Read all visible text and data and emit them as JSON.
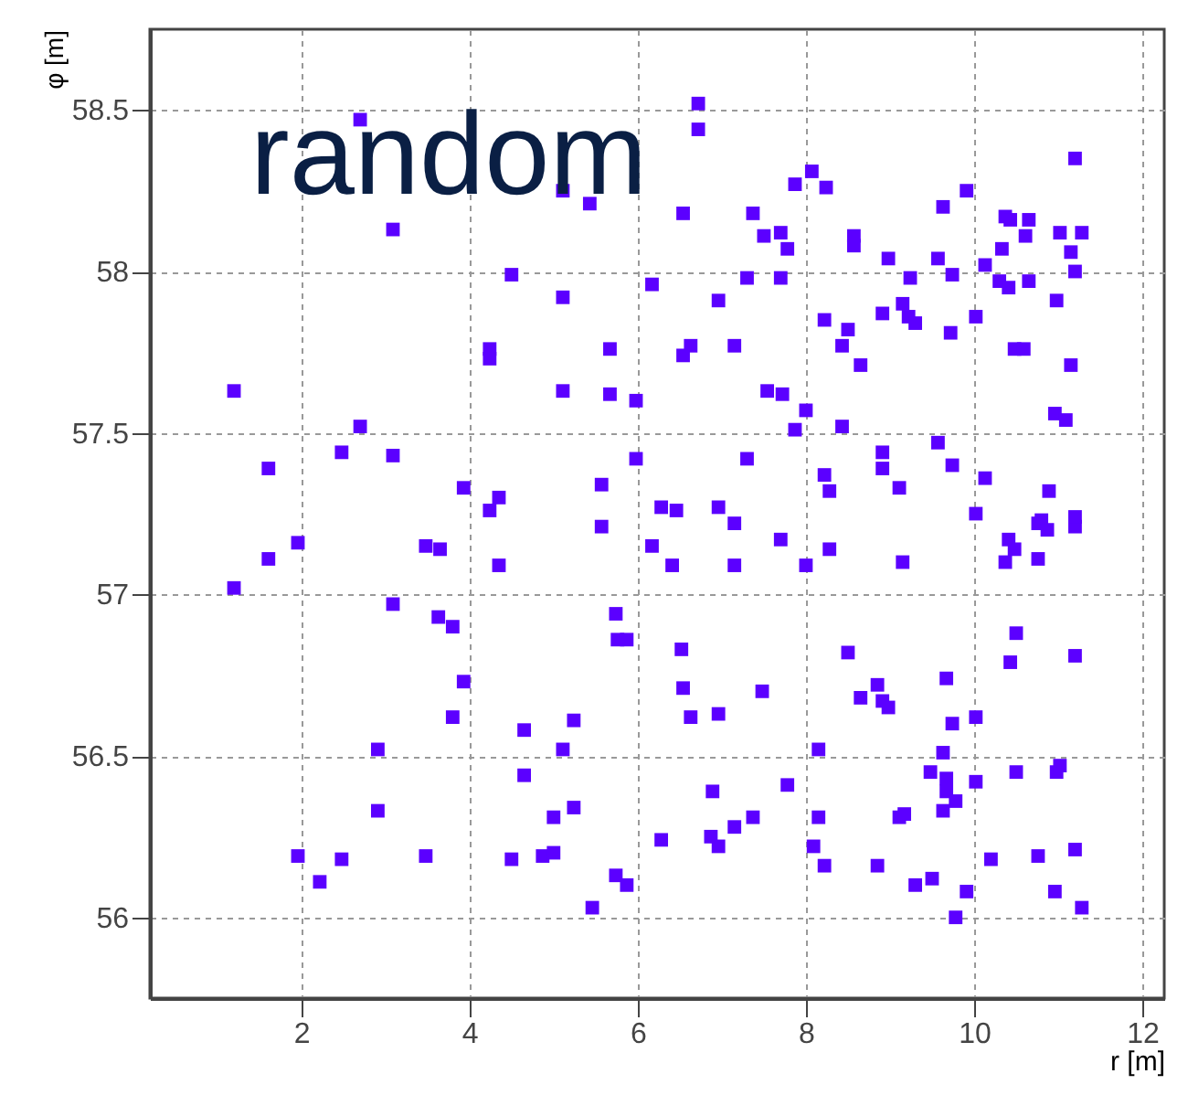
{
  "chart_data": {
    "type": "scatter",
    "xlabel": "r [m]",
    "ylabel": "φ [m]",
    "annotations": [
      "random"
    ],
    "xlim": [
      0.2,
      12.26
    ],
    "ylim": [
      55.75,
      58.75
    ],
    "xticks": [
      2,
      4,
      6,
      8,
      10,
      12
    ],
    "yticks": [
      56,
      56.5,
      57,
      57.5,
      58,
      58.5
    ],
    "grid": true,
    "marker": "square",
    "series": [
      {
        "color": "#5b00ff",
        "x": [
          6.72,
          6.72,
          2.7,
          3.09,
          5.11,
          5.43,
          4.5,
          5.11,
          6.17,
          4.24,
          4.24,
          5.67,
          1.2,
          5.11,
          5.67,
          5.98,
          2.7,
          2.48,
          3.09,
          1.61,
          5.98,
          3.93,
          4.35,
          4.24,
          5.57,
          5.57,
          6.28,
          1.2,
          1.61,
          1.96,
          3.48,
          3.65,
          4.35,
          6.17,
          6.41,
          3.09,
          3.63,
          3.8,
          5.74,
          5.76,
          5.87,
          3.93,
          3.8,
          4.65,
          5.24,
          2.91,
          5.11,
          4.65,
          2.91,
          5.24,
          5.0,
          1.96,
          2.48,
          2.22,
          3.48,
          4.5,
          4.87,
          5.0,
          5.74,
          5.87,
          5.46,
          6.28,
          7.87,
          8.07,
          8.24,
          11.2,
          9.91,
          9.63,
          6.54,
          7.37,
          7.5,
          7.7,
          7.78,
          8.57,
          8.57,
          10.37,
          10.43,
          10.65,
          10.61,
          11.02,
          11.28,
          10.33,
          11.15,
          11.2,
          8.98,
          9.57,
          10.13,
          9.74,
          9.24,
          7.3,
          7.7,
          10.3,
          10.41,
          10.65,
          10.98,
          6.96,
          8.22,
          8.5,
          8.91,
          9.15,
          9.22,
          9.3,
          9.72,
          10.02,
          10.48,
          10.59,
          7.15,
          6.54,
          6.63,
          8.43,
          8.65,
          11.15,
          7.54,
          7.72,
          8.0,
          7.87,
          8.43,
          10.96,
          11.09,
          7.3,
          9.57,
          8.22,
          8.28,
          8.91,
          8.91,
          9.11,
          9.74,
          10.13,
          10.89,
          6.46,
          6.96,
          7.15,
          10.02,
          10.8,
          11.2,
          7.15,
          7.7,
          8.0,
          8.28,
          9.15,
          10.41,
          10.48,
          10.37,
          10.76,
          10.87,
          11.2,
          10.76,
          6.52,
          6.54,
          6.63,
          6.96,
          7.48,
          8.5,
          8.85,
          8.65,
          8.91,
          8.98,
          9.67,
          9.74,
          10.02,
          10.5,
          10.43,
          11.2,
          8.15,
          9.63,
          9.48,
          9.67,
          9.67,
          9.78,
          9.63,
          10.02,
          10.5,
          10.98,
          11.02,
          6.89,
          7.78,
          7.37,
          7.15,
          6.87,
          6.96,
          8.15,
          9.11,
          9.17,
          8.09,
          8.22,
          8.85,
          9.3,
          9.5,
          9.91,
          9.78,
          10.2,
          10.76,
          11.2,
          10.96,
          11.28
        ],
        "values": [
          58.52,
          58.44,
          58.47,
          58.13,
          58.25,
          58.21,
          57.99,
          57.92,
          57.96,
          57.76,
          57.73,
          57.76,
          57.63,
          57.63,
          57.62,
          57.6,
          57.52,
          57.44,
          57.43,
          57.39,
          57.42,
          57.33,
          57.3,
          57.26,
          57.34,
          57.21,
          57.27,
          57.02,
          57.11,
          57.16,
          57.15,
          57.14,
          57.09,
          57.15,
          57.09,
          56.97,
          56.93,
          56.9,
          56.94,
          56.86,
          56.86,
          56.73,
          56.62,
          56.58,
          56.61,
          56.52,
          56.52,
          56.44,
          56.33,
          56.34,
          56.31,
          56.19,
          56.18,
          56.11,
          56.19,
          56.18,
          56.19,
          56.2,
          56.13,
          56.1,
          56.03,
          56.24,
          58.27,
          58.31,
          58.26,
          58.35,
          58.25,
          58.2,
          58.18,
          58.18,
          58.11,
          58.12,
          58.07,
          58.11,
          58.08,
          58.17,
          58.16,
          58.16,
          58.11,
          58.12,
          58.12,
          58.07,
          58.06,
          58.0,
          58.04,
          58.04,
          58.02,
          57.99,
          57.98,
          57.98,
          57.98,
          57.97,
          57.95,
          57.97,
          57.91,
          57.91,
          57.85,
          57.82,
          57.87,
          57.9,
          57.86,
          57.84,
          57.81,
          57.86,
          57.76,
          57.76,
          57.77,
          57.74,
          57.77,
          57.77,
          57.71,
          57.71,
          57.63,
          57.62,
          57.57,
          57.51,
          57.52,
          57.56,
          57.54,
          57.42,
          57.47,
          57.37,
          57.32,
          57.44,
          57.39,
          57.33,
          57.4,
          57.36,
          57.32,
          57.26,
          57.27,
          57.22,
          57.25,
          57.23,
          57.21,
          57.09,
          57.17,
          57.09,
          57.14,
          57.1,
          57.17,
          57.14,
          57.1,
          57.22,
          57.2,
          57.24,
          57.11,
          56.83,
          56.71,
          56.62,
          56.63,
          56.7,
          56.82,
          56.72,
          56.68,
          56.67,
          56.65,
          56.74,
          56.6,
          56.62,
          56.88,
          56.79,
          56.81,
          56.52,
          56.51,
          56.45,
          56.43,
          56.39,
          56.36,
          56.33,
          56.42,
          56.45,
          56.45,
          56.47,
          56.39,
          56.41,
          56.31,
          56.28,
          56.25,
          56.22,
          56.31,
          56.31,
          56.32,
          56.22,
          56.16,
          56.16,
          56.1,
          56.12,
          56.08,
          56.0,
          56.18,
          56.19,
          56.21,
          56.08,
          56.03
        ]
      }
    ]
  }
}
